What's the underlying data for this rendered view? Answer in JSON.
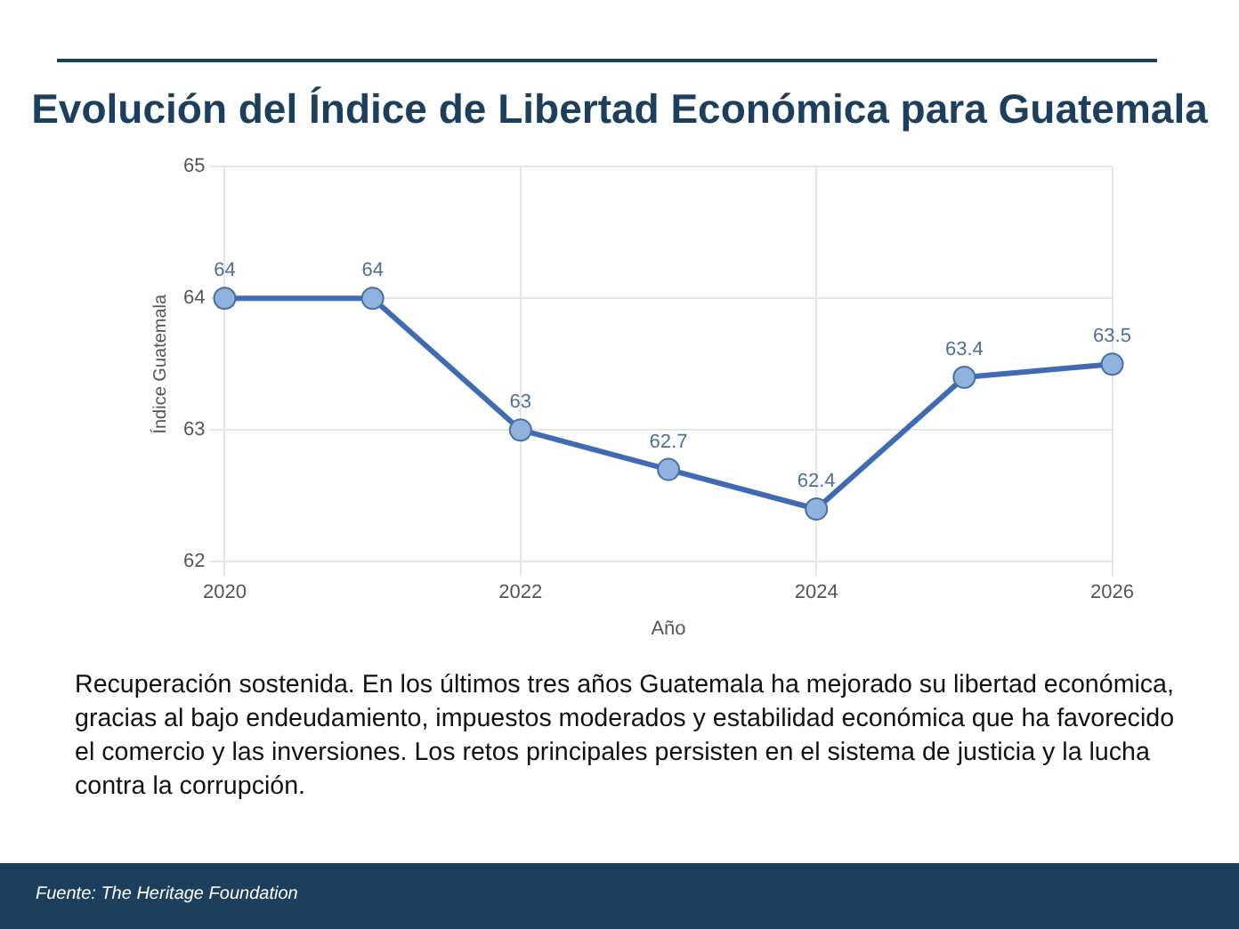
{
  "chart_data": {
    "type": "line",
    "title": "Evolución del Índice de Libertad Económica para Guatemala",
    "x": [
      2020,
      2021,
      2022,
      2023,
      2024,
      2025,
      2026
    ],
    "series": [
      {
        "color": "#3f6bb5",
        "values": [
          64,
          64,
          63,
          62.7,
          62.4,
          63.4,
          63.5
        ]
      }
    ],
    "xlabel": "Año",
    "ylabel": "Índice Guatemala",
    "xlim": [
      2020,
      2026
    ],
    "xticks": [
      2020,
      2022,
      2024,
      2026
    ],
    "ylim": [
      62,
      65
    ],
    "yticks": [
      62,
      63,
      64,
      65
    ],
    "grid": true,
    "marker": "circle",
    "line_style": "solid",
    "data_labels": true,
    "legend": false,
    "annotations": [
      "Recuperación sostenida.  En los últimos tres años Guatemala ha mejorado su libertad económica, gracias al bajo endeudamiento, impuestos moderados y estabilidad económica que ha favorecido el comercio y las inversiones.  Los retos principales persisten en el sistema de justicia y la lucha contra la corrupción.",
      "Fuente: The Heritage Foundation"
    ]
  }
}
